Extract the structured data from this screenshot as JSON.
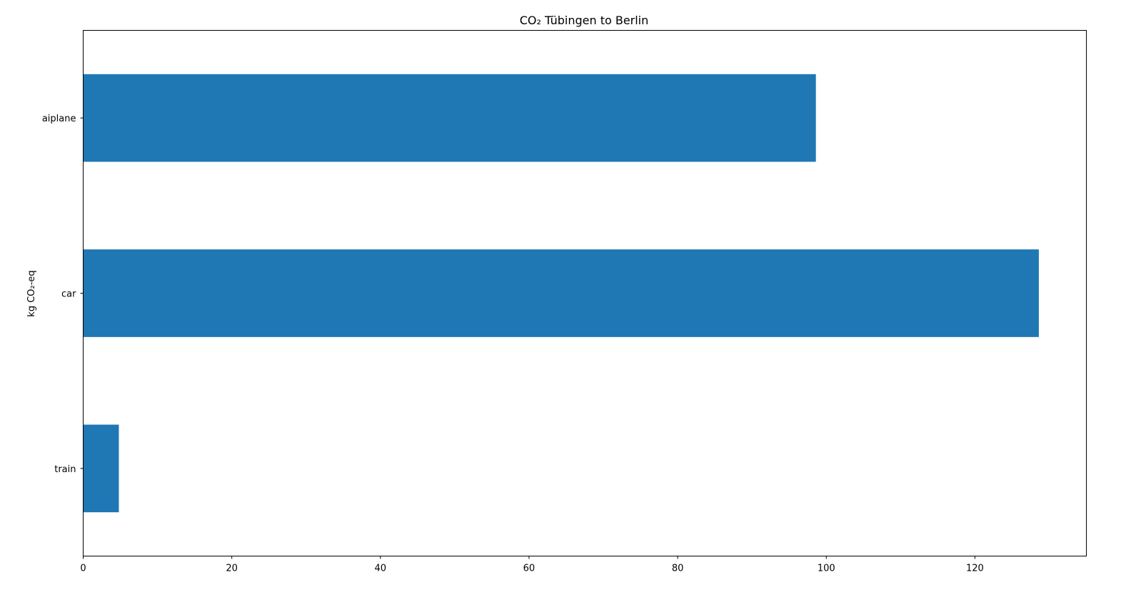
{
  "chart_data": {
    "type": "bar",
    "orientation": "horizontal",
    "title": "CO₂ Tübingen to Berlin",
    "xlabel": "",
    "ylabel": "kg CO₂-eq",
    "categories": [
      "train",
      "car",
      "aiplane"
    ],
    "values": [
      4.8,
      128.6,
      98.6
    ],
    "xlim": [
      0,
      135
    ],
    "xticks": [
      0,
      20,
      40,
      60,
      80,
      100,
      120
    ],
    "grid": false,
    "legend": "none",
    "bar_color": "#1f77b4"
  }
}
